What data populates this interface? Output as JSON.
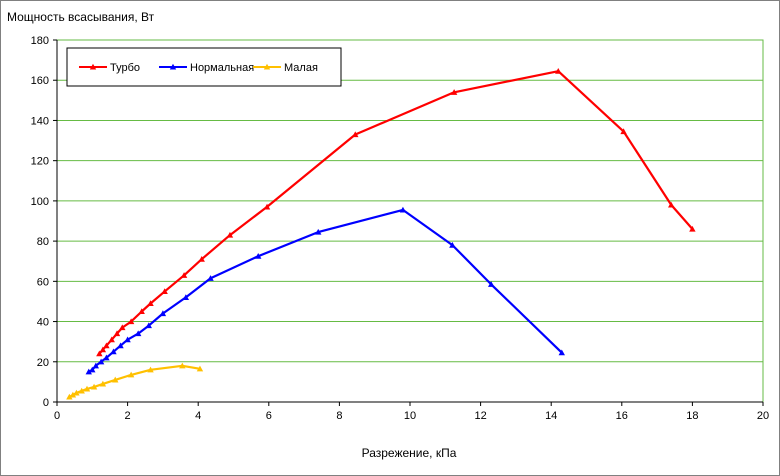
{
  "chart_data": {
    "type": "line",
    "title": "",
    "ylabel": "Мощность  всасывания, Вт",
    "xlabel": "Разрежение, кПа",
    "xlim": [
      0,
      20
    ],
    "ylim": [
      0,
      180
    ],
    "xticks": [
      0,
      2,
      4,
      6,
      8,
      10,
      12,
      14,
      16,
      18,
      20
    ],
    "yticks": [
      0,
      20,
      40,
      60,
      80,
      100,
      120,
      140,
      160,
      180
    ],
    "grid": "horizontal",
    "legend_position": "top-left",
    "series": [
      {
        "name": "Турбо",
        "color": "#ff0000",
        "marker": "triangle",
        "points": [
          [
            1.2,
            24
          ],
          [
            1.3,
            26
          ],
          [
            1.4,
            28
          ],
          [
            1.55,
            31
          ],
          [
            1.7,
            34
          ],
          [
            1.85,
            37
          ],
          [
            2.1,
            40
          ],
          [
            2.4,
            45
          ],
          [
            2.65,
            49
          ],
          [
            3.05,
            55
          ],
          [
            3.6,
            63
          ],
          [
            4.1,
            71
          ],
          [
            4.9,
            83
          ],
          [
            5.95,
            97
          ],
          [
            8.45,
            133
          ],
          [
            11.25,
            154
          ],
          [
            14.2,
            164.5
          ],
          [
            16.05,
            134.5
          ],
          [
            17.4,
            98
          ],
          [
            18,
            86
          ]
        ]
      },
      {
        "name": "Нормальная",
        "color": "#0000ff",
        "marker": "triangle",
        "points": [
          [
            0.9,
            15
          ],
          [
            1.0,
            16
          ],
          [
            1.1,
            18
          ],
          [
            1.25,
            20
          ],
          [
            1.4,
            22
          ],
          [
            1.6,
            25
          ],
          [
            1.8,
            28
          ],
          [
            2.0,
            31
          ],
          [
            2.3,
            34
          ],
          [
            2.6,
            38
          ],
          [
            3.0,
            44
          ],
          [
            3.65,
            52
          ],
          [
            4.35,
            61.5
          ],
          [
            5.7,
            72.5
          ],
          [
            7.4,
            84.5
          ],
          [
            9.8,
            95.5
          ],
          [
            11.2,
            78
          ],
          [
            12.3,
            58.5
          ],
          [
            14.3,
            24.5
          ]
        ]
      },
      {
        "name": "Малая",
        "color": "#ffc000",
        "marker": "triangle",
        "points": [
          [
            0.35,
            2.5
          ],
          [
            0.45,
            3.5
          ],
          [
            0.55,
            4.5
          ],
          [
            0.7,
            5.5
          ],
          [
            0.85,
            6.5
          ],
          [
            1.05,
            7.5
          ],
          [
            1.3,
            9
          ],
          [
            1.65,
            11
          ],
          [
            2.1,
            13.5
          ],
          [
            2.65,
            16
          ],
          [
            3.55,
            18
          ],
          [
            4.05,
            16.5
          ]
        ]
      }
    ]
  }
}
